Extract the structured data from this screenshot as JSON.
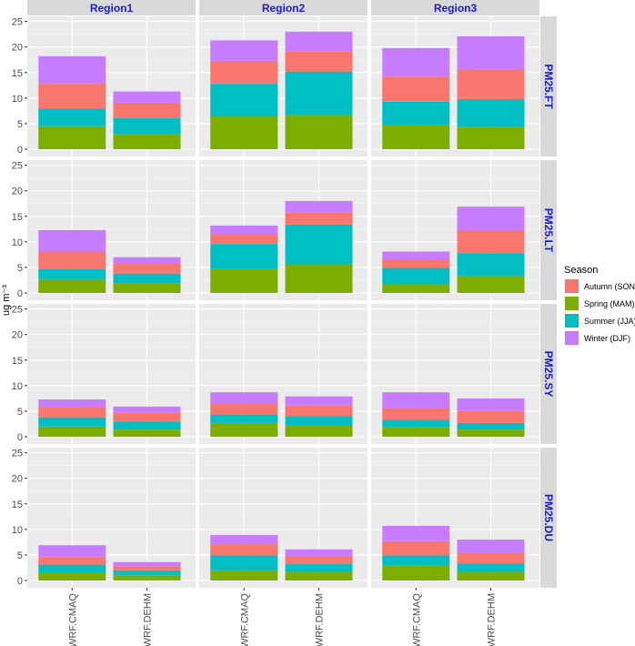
{
  "chart_data": {
    "type": "bar",
    "stacked": true,
    "ylabel": "ug m⁻³",
    "ylim": [
      0,
      26
    ],
    "yticks": [
      0,
      5,
      10,
      15,
      20,
      25
    ],
    "categories": [
      "WRF.CMAQ",
      "WRF.DEHM"
    ],
    "columns": [
      "Region1",
      "Region2",
      "Region3"
    ],
    "rows": [
      "PM25.FT",
      "PM25.LT",
      "PM25.SY",
      "PM25.DU"
    ],
    "legend": {
      "title": "Season",
      "position": "right",
      "entries": [
        "Autumn (SON)",
        "Spring (MAM)",
        "Summer (JJA)",
        "Winter (DJF)"
      ]
    },
    "stack_order": [
      "Spring (MAM)",
      "Summer (JJA)",
      "Autumn (SON)",
      "Winter (DJF)"
    ],
    "colors": {
      "Autumn (SON)": "#F8766D",
      "Spring (MAM)": "#7CAE00",
      "Summer (JJA)": "#00BFC4",
      "Winter (DJF)": "#C77CFF"
    },
    "panels": [
      {
        "row": "PM25.FT",
        "column": "Region1",
        "values": {
          "WRF.CMAQ": [
            4.5,
            3.5,
            4.8,
            5.4
          ],
          "WRF.DEHM": [
            3.0,
            3.1,
            3.0,
            2.2
          ]
        }
      },
      {
        "row": "PM25.FT",
        "column": "Region2",
        "values": {
          "WRF.CMAQ": [
            6.5,
            6.3,
            4.5,
            4.0
          ],
          "WRF.DEHM": [
            6.7,
            8.5,
            4.0,
            3.8
          ]
        }
      },
      {
        "row": "PM25.FT",
        "column": "Region3",
        "values": {
          "WRF.CMAQ": [
            4.7,
            4.6,
            4.9,
            5.6
          ],
          "WRF.DEHM": [
            4.4,
            5.4,
            5.8,
            6.5
          ]
        }
      },
      {
        "row": "PM25.LT",
        "column": "Region1",
        "values": {
          "WRF.CMAQ": [
            2.7,
            2.0,
            3.4,
            4.2
          ],
          "WRF.DEHM": [
            1.9,
            1.9,
            1.9,
            1.3
          ]
        }
      },
      {
        "row": "PM25.LT",
        "column": "Region2",
        "values": {
          "WRF.CMAQ": [
            4.7,
            4.9,
            1.9,
            1.7
          ],
          "WRF.DEHM": [
            5.6,
            7.8,
            2.3,
            2.3
          ]
        }
      },
      {
        "row": "PM25.LT",
        "column": "Region3",
        "values": {
          "WRF.CMAQ": [
            1.7,
            3.2,
            1.6,
            1.6
          ],
          "WRF.DEHM": [
            3.4,
            4.4,
            4.4,
            4.7
          ]
        }
      },
      {
        "row": "PM25.SY",
        "column": "Region1",
        "values": {
          "WRF.CMAQ": [
            2.0,
            1.8,
            1.9,
            1.6
          ],
          "WRF.DEHM": [
            1.4,
            1.6,
            1.7,
            1.2
          ]
        }
      },
      {
        "row": "PM25.SY",
        "column": "Region2",
        "values": {
          "WRF.CMAQ": [
            2.7,
            1.7,
            2.0,
            2.3
          ],
          "WRF.DEHM": [
            2.3,
            1.7,
            2.1,
            1.8
          ]
        }
      },
      {
        "row": "PM25.SY",
        "column": "Region3",
        "values": {
          "WRF.CMAQ": [
            1.9,
            1.4,
            2.3,
            3.1
          ],
          "WRF.DEHM": [
            1.4,
            1.3,
            2.3,
            2.5
          ]
        }
      },
      {
        "row": "PM25.DU",
        "column": "Region1",
        "values": {
          "WRF.CMAQ": [
            1.6,
            1.5,
            1.5,
            2.3
          ],
          "WRF.DEHM": [
            1.0,
            1.0,
            0.8,
            0.8
          ]
        }
      },
      {
        "row": "PM25.DU",
        "column": "Region2",
        "values": {
          "WRF.CMAQ": [
            2.0,
            2.9,
            2.2,
            1.8
          ],
          "WRF.DEHM": [
            1.7,
            1.5,
            1.5,
            1.4
          ]
        }
      },
      {
        "row": "PM25.DU",
        "column": "Region3",
        "values": {
          "WRF.CMAQ": [
            3.0,
            1.9,
            2.8,
            3.0
          ],
          "WRF.DEHM": [
            1.7,
            1.6,
            2.2,
            2.5
          ]
        }
      }
    ]
  }
}
